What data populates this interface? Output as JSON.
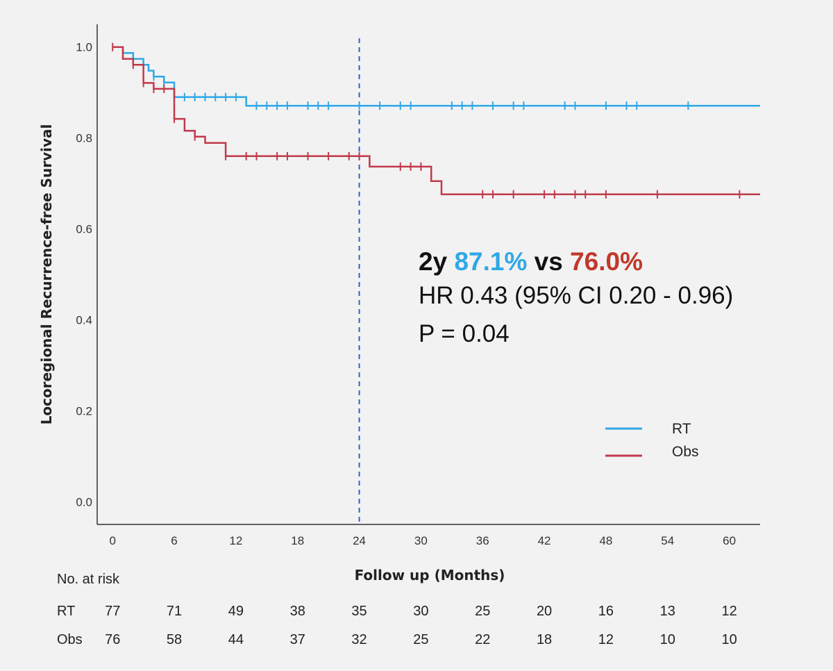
{
  "chart_data": {
    "type": "line",
    "subtype": "kaplan-meier",
    "ylabel": "Locoregional Recurrence-free Survival",
    "xlabel": "Follow up (Months)",
    "xlim": [
      -1.5,
      63
    ],
    "ylim": [
      -0.05,
      1.05
    ],
    "xticks": [
      0,
      6,
      12,
      18,
      24,
      30,
      36,
      42,
      48,
      54,
      60
    ],
    "yticks": [
      0.0,
      0.2,
      0.4,
      0.6,
      0.8,
      1.0
    ],
    "ytick_labels": [
      "0.0",
      "0.2",
      "0.4",
      "0.6",
      "0.8",
      "1.0"
    ],
    "reference_line": {
      "x": 24,
      "style": "dashed",
      "color": "#3a5cc4"
    },
    "legend": {
      "position": "lower-right",
      "entries": [
        "RT",
        "Obs"
      ]
    },
    "series": [
      {
        "name": "RT",
        "color": "#2fa8e6",
        "steps": [
          [
            0,
            1.0
          ],
          [
            1,
            0.987
          ],
          [
            2,
            0.974
          ],
          [
            3,
            0.961
          ],
          [
            3.5,
            0.948
          ],
          [
            4,
            0.935
          ],
          [
            5,
            0.922
          ],
          [
            6,
            0.89
          ],
          [
            13,
            0.871
          ],
          [
            63,
            0.871
          ]
        ],
        "censored": [
          [
            3,
            0.961
          ],
          [
            4,
            0.935
          ],
          [
            5,
            0.922
          ],
          [
            7,
            0.89
          ],
          [
            8,
            0.89
          ],
          [
            9,
            0.89
          ],
          [
            10,
            0.89
          ],
          [
            11,
            0.89
          ],
          [
            12,
            0.89
          ],
          [
            14,
            0.871
          ],
          [
            15,
            0.871
          ],
          [
            16,
            0.871
          ],
          [
            17,
            0.871
          ],
          [
            19,
            0.871
          ],
          [
            20,
            0.871
          ],
          [
            21,
            0.871
          ],
          [
            24,
            0.871
          ],
          [
            26,
            0.871
          ],
          [
            28,
            0.871
          ],
          [
            29,
            0.871
          ],
          [
            33,
            0.871
          ],
          [
            34,
            0.871
          ],
          [
            35,
            0.871
          ],
          [
            37,
            0.871
          ],
          [
            39,
            0.871
          ],
          [
            40,
            0.871
          ],
          [
            44,
            0.871
          ],
          [
            45,
            0.871
          ],
          [
            48,
            0.871
          ],
          [
            50,
            0.871
          ],
          [
            51,
            0.871
          ],
          [
            56,
            0.871
          ]
        ]
      },
      {
        "name": "Obs",
        "color": "#c0394b",
        "steps": [
          [
            0,
            1.0
          ],
          [
            1,
            0.974
          ],
          [
            2,
            0.961
          ],
          [
            3,
            0.921
          ],
          [
            4,
            0.908
          ],
          [
            6,
            0.842
          ],
          [
            7,
            0.816
          ],
          [
            8,
            0.803
          ],
          [
            9,
            0.789
          ],
          [
            11,
            0.76
          ],
          [
            24,
            0.76
          ],
          [
            25,
            0.737
          ],
          [
            31,
            0.705
          ],
          [
            32,
            0.676
          ],
          [
            63,
            0.676
          ]
        ],
        "censored": [
          [
            0,
            1.0
          ],
          [
            2,
            0.961
          ],
          [
            3,
            0.921
          ],
          [
            4,
            0.908
          ],
          [
            5,
            0.908
          ],
          [
            6,
            0.842
          ],
          [
            8,
            0.803
          ],
          [
            11,
            0.76
          ],
          [
            13,
            0.76
          ],
          [
            14,
            0.76
          ],
          [
            16,
            0.76
          ],
          [
            17,
            0.76
          ],
          [
            19,
            0.76
          ],
          [
            21,
            0.76
          ],
          [
            23,
            0.76
          ],
          [
            24,
            0.76
          ],
          [
            28,
            0.737
          ],
          [
            29,
            0.737
          ],
          [
            30,
            0.737
          ],
          [
            36,
            0.676
          ],
          [
            37,
            0.676
          ],
          [
            39,
            0.676
          ],
          [
            42,
            0.676
          ],
          [
            43,
            0.676
          ],
          [
            45,
            0.676
          ],
          [
            46,
            0.676
          ],
          [
            48,
            0.676
          ],
          [
            53,
            0.676
          ],
          [
            61,
            0.676
          ]
        ]
      }
    ],
    "annotation": {
      "prefix": "2y ",
      "rt_value": "87.1%",
      "middle": " vs ",
      "obs_value": "76.0%",
      "rt_color": "#2fa8e6",
      "obs_color": "#c0392b",
      "hr_text": "HR 0.43 (95% CI 0.20 - 0.96)",
      "p_text": "P = 0.04"
    },
    "risk_table": {
      "title": "No. at risk",
      "times": [
        0,
        6,
        12,
        18,
        24,
        30,
        36,
        42,
        48,
        54,
        60
      ],
      "rows": [
        {
          "name": "RT",
          "values": [
            77,
            71,
            49,
            38,
            35,
            30,
            25,
            20,
            16,
            13,
            12
          ]
        },
        {
          "name": "Obs",
          "values": [
            76,
            58,
            44,
            37,
            32,
            25,
            22,
            18,
            12,
            10,
            10
          ]
        }
      ]
    }
  }
}
